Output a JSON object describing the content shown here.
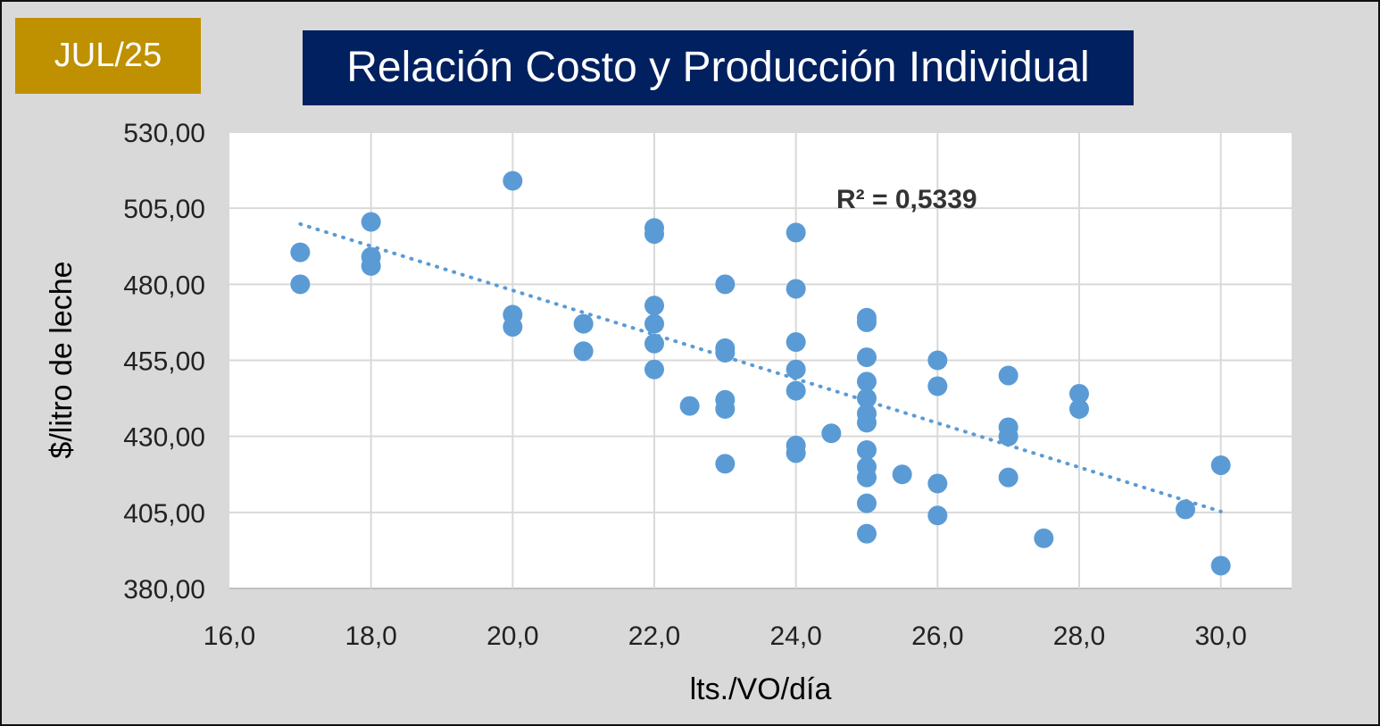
{
  "badge": "JUL/25",
  "colors": {
    "badge_bg": "#bf9000",
    "title_bg": "#002060",
    "points": "#5b9bd5",
    "trendline": "#5b9bd5"
  },
  "chart_data": {
    "type": "scatter",
    "title": "Relación Costo y Producción Individual",
    "xlabel": "lts./VO/día",
    "ylabel": "$/litro de leche",
    "xlim": [
      16,
      31
    ],
    "ylim": [
      380,
      530
    ],
    "xticks": [
      "16,0",
      "18,0",
      "20,0",
      "22,0",
      "24,0",
      "26,0",
      "28,0",
      "30,0"
    ],
    "yticks": [
      "530,00",
      "505,00",
      "480,00",
      "455,00",
      "430,00",
      "405,00",
      "380,00"
    ],
    "grid": true,
    "annotation": "R² = 0,5339",
    "trendline": {
      "style": "dotted",
      "x": [
        17,
        30
      ],
      "y": [
        499.8,
        405.3
      ]
    },
    "points": [
      {
        "x": 17,
        "y": 490.5
      },
      {
        "x": 17,
        "y": 480
      },
      {
        "x": 18,
        "y": 500.5
      },
      {
        "x": 18,
        "y": 489
      },
      {
        "x": 18,
        "y": 486
      },
      {
        "x": 20,
        "y": 514
      },
      {
        "x": 20,
        "y": 470
      },
      {
        "x": 20,
        "y": 466
      },
      {
        "x": 21,
        "y": 467
      },
      {
        "x": 21,
        "y": 458
      },
      {
        "x": 22,
        "y": 498.5
      },
      {
        "x": 22,
        "y": 496.5
      },
      {
        "x": 22,
        "y": 473
      },
      {
        "x": 22,
        "y": 467
      },
      {
        "x": 22,
        "y": 460.5
      },
      {
        "x": 22,
        "y": 452
      },
      {
        "x": 22.5,
        "y": 440
      },
      {
        "x": 23,
        "y": 480
      },
      {
        "x": 23,
        "y": 459
      },
      {
        "x": 23,
        "y": 457.5
      },
      {
        "x": 23,
        "y": 442
      },
      {
        "x": 23,
        "y": 439
      },
      {
        "x": 23,
        "y": 421
      },
      {
        "x": 24,
        "y": 497
      },
      {
        "x": 24,
        "y": 478.5
      },
      {
        "x": 24,
        "y": 461
      },
      {
        "x": 24,
        "y": 452
      },
      {
        "x": 24,
        "y": 445
      },
      {
        "x": 24,
        "y": 427
      },
      {
        "x": 24,
        "y": 424.5
      },
      {
        "x": 24.5,
        "y": 431
      },
      {
        "x": 25,
        "y": 469
      },
      {
        "x": 25,
        "y": 467.5
      },
      {
        "x": 25,
        "y": 456
      },
      {
        "x": 25,
        "y": 448
      },
      {
        "x": 25,
        "y": 442.5
      },
      {
        "x": 25,
        "y": 437.5
      },
      {
        "x": 25,
        "y": 434.5
      },
      {
        "x": 25,
        "y": 425.5
      },
      {
        "x": 25,
        "y": 420
      },
      {
        "x": 25,
        "y": 416.5
      },
      {
        "x": 25,
        "y": 408
      },
      {
        "x": 25,
        "y": 398
      },
      {
        "x": 25.5,
        "y": 417.5
      },
      {
        "x": 26,
        "y": 455
      },
      {
        "x": 26,
        "y": 446.5
      },
      {
        "x": 26,
        "y": 414.5
      },
      {
        "x": 26,
        "y": 404
      },
      {
        "x": 27,
        "y": 450
      },
      {
        "x": 27,
        "y": 433
      },
      {
        "x": 27,
        "y": 430
      },
      {
        "x": 27,
        "y": 416.5
      },
      {
        "x": 27.5,
        "y": 396.5
      },
      {
        "x": 28,
        "y": 444
      },
      {
        "x": 28,
        "y": 439
      },
      {
        "x": 29.5,
        "y": 406
      },
      {
        "x": 30,
        "y": 420.5
      },
      {
        "x": 30,
        "y": 387.5
      }
    ]
  }
}
